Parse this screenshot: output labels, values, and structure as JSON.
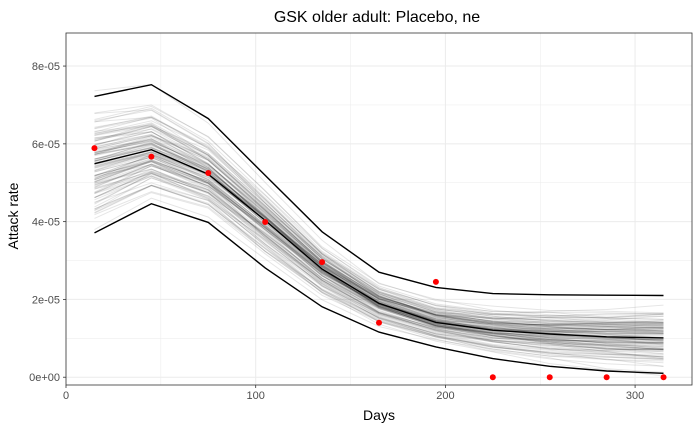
{
  "chart_data": {
    "type": "line",
    "title": "GSK older adult: Placebo, ne",
    "xlabel": "Days",
    "ylabel": "Attack rate",
    "x": [
      15,
      45,
      75,
      105,
      135,
      165,
      195,
      225,
      255,
      285,
      315
    ],
    "xlim": [
      0,
      330
    ],
    "ylim": [
      -2e-06,
      8.85e-05
    ],
    "x_ticks": [
      0,
      100,
      200,
      300
    ],
    "x_tick_labels": [
      "0",
      "100",
      "200",
      "300"
    ],
    "y_ticks": [
      0,
      2e-05,
      4e-05,
      6e-05,
      8e-05
    ],
    "y_tick_labels": [
      "0e+00",
      "2e-05",
      "4e-05",
      "6e-05",
      "8e-05"
    ],
    "grid": true,
    "legend": "none",
    "series": [
      {
        "values": [
          7.22e-05,
          7.52e-05,
          6.65e-05,
          5.19e-05,
          3.74e-05,
          2.7e-05,
          2.31e-05,
          2.15e-05,
          2.12e-05,
          2.11e-05,
          2.1e-05
        ]
      },
      {
        "values": [
          5.49e-05,
          5.85e-05,
          5.22e-05,
          4.03e-05,
          2.78e-05,
          1.9e-05,
          1.41e-05,
          1.21e-05,
          1.11e-05,
          1.04e-05,
          1.01e-05
        ]
      },
      {
        "values": [
          3.71e-05,
          4.46e-05,
          3.98e-05,
          2.81e-05,
          1.81e-05,
          1.16e-05,
          7.8e-06,
          4.8e-06,
          2.8e-06,
          1.6e-06,
          1e-06
        ]
      }
    ],
    "observed": {
      "x": [
        15,
        45,
        75,
        105,
        135,
        165,
        195,
        225,
        255,
        285,
        315
      ],
      "y": [
        5.89e-05,
        5.67e-05,
        5.25e-05,
        3.99e-05,
        2.96e-05,
        1.4e-05,
        2.45e-05,
        0,
        0,
        0,
        0
      ]
    },
    "sample_trajectories": 120,
    "colors": {
      "summary_line": "#000000",
      "sample_line": "#000000",
      "observed_point": "#ff0000",
      "grid": "#ebebeb",
      "panel_border": "#333333"
    }
  }
}
